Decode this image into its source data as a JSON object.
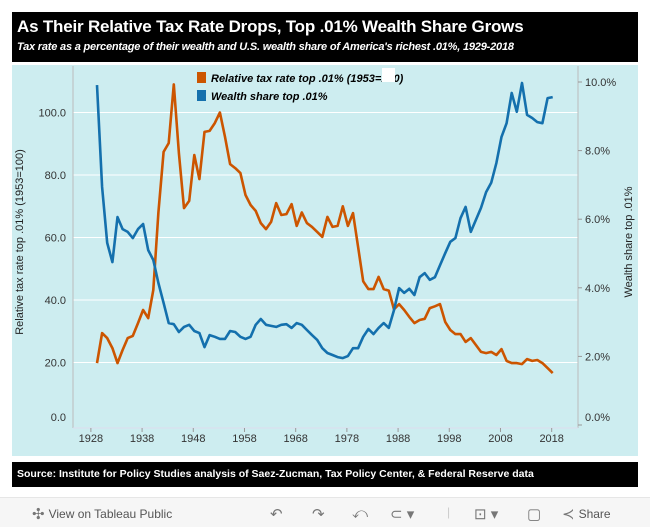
{
  "header": {
    "title": "As Their Relative Tax Rate Drops, Top .01% Wealth Share Grows",
    "subtitle": "Tax rate as a percentage of their wealth and U.S. wealth share of America's richest .01%, 1929-2018"
  },
  "source": "Source: Institute for Policy Studies analysis of Saez-Zucman, Tax Policy Center, & Federal Reserve data",
  "toolbar": {
    "view_label": "View on Tableau Public",
    "share_label": "Share"
  },
  "chart_data": {
    "type": "line",
    "title": "As Their Relative Tax Rate Drops, Top .01% Wealth Share Grows",
    "ylabel": "Relative tax rate top .01% (1953=100)",
    "y2label": "Wealth share top .01%",
    "ylim": [
      0,
      110
    ],
    "y2lim": [
      0,
      10.9
    ],
    "yticks": [
      "0.0",
      "20.0",
      "40.0",
      "60.0",
      "80.0",
      "100.0"
    ],
    "y2ticks": [
      "0.0%",
      "2.0%",
      "4.0%",
      "6.0%",
      "8.0%",
      "10.0%"
    ],
    "xticks": [
      "1928",
      "1938",
      "1948",
      "1958",
      "1968",
      "1978",
      "1988",
      "1998",
      "2008",
      "2018"
    ],
    "x_start": 1929,
    "legend_position": "top-center",
    "series": [
      {
        "name": "Relative tax rate top .01% (1953=100)",
        "axis": "left",
        "color": "#cc5500",
        "values": [
          19.8,
          29.4,
          27.8,
          24.6,
          19.8,
          24,
          27.8,
          28.5,
          32.6,
          36.8,
          34.2,
          43.2,
          68,
          87.4,
          90.2,
          109,
          87,
          69.4,
          71.7,
          86.4,
          78.7,
          93.8,
          94.1,
          96.6,
          100,
          92.2,
          83.5,
          82.2,
          80.6,
          73.6,
          70.4,
          68.5,
          64.6,
          62.7,
          65,
          71,
          67.2,
          67.5,
          70.7,
          63.7,
          68,
          64.6,
          63.4,
          61.8,
          60.2,
          66.6,
          63.4,
          63.7,
          70,
          63.7,
          67.8,
          57,
          46,
          43.5,
          43.5,
          47.4,
          43.5,
          43,
          37,
          38.7,
          36.8,
          34.6,
          32.6,
          33.6,
          34,
          37.4,
          38,
          38.7,
          33,
          30.4,
          29.1,
          29.1,
          26.6,
          27.8,
          25.6,
          23.4,
          23,
          23.4,
          22.4,
          24.3,
          20.5,
          19.8,
          19.8,
          19.5,
          21.1,
          20.5,
          20.8,
          19.8,
          18.2,
          16.6
        ]
      },
      {
        "name": "Wealth share top .01%",
        "axis": "right",
        "color": "#1470ad",
        "values": [
          9.91,
          6.94,
          5.31,
          4.75,
          6.06,
          5.71,
          5.63,
          5.45,
          5.71,
          5.86,
          5.1,
          4.81,
          4.14,
          3.56,
          2.97,
          2.94,
          2.71,
          2.86,
          2.92,
          2.74,
          2.68,
          2.27,
          2.62,
          2.57,
          2.51,
          2.51,
          2.74,
          2.71,
          2.57,
          2.51,
          2.57,
          2.92,
          3.09,
          2.92,
          2.89,
          2.86,
          2.92,
          2.94,
          2.83,
          2.97,
          2.92,
          2.77,
          2.62,
          2.48,
          2.24,
          2.1,
          2.04,
          1.98,
          1.95,
          2.01,
          2.24,
          2.24,
          2.57,
          2.8,
          2.65,
          2.83,
          2.97,
          2.83,
          3.35,
          3.99,
          3.85,
          3.97,
          3.79,
          4.31,
          4.43,
          4.23,
          4.31,
          4.66,
          5.01,
          5.34,
          5.45,
          6.03,
          6.36,
          5.63,
          5.98,
          6.33,
          6.79,
          7.06,
          7.64,
          8.4,
          8.8,
          9.68,
          9.13,
          9.97,
          9.04,
          8.95,
          8.83,
          8.8,
          9.53,
          9.56
        ]
      }
    ]
  }
}
